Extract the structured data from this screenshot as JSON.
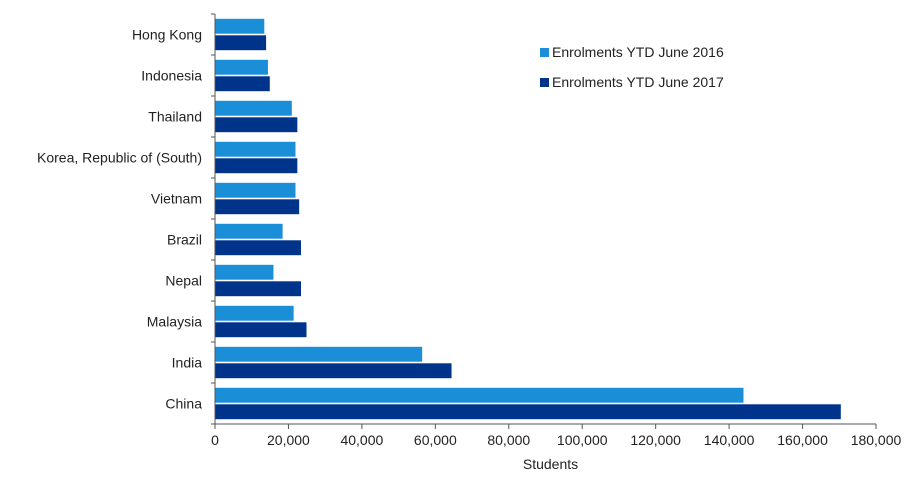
{
  "chart_data": {
    "type": "bar",
    "orientation": "horizontal",
    "categories": [
      "Hong Kong",
      "Indonesia",
      "Thailand",
      "Korea, Republic of (South)",
      "Vietnam",
      "Brazil",
      "Nepal",
      "Malaysia",
      "India",
      "China"
    ],
    "series": [
      {
        "name": "Enrolments YTD June 2016",
        "color": "#1a8fd8",
        "values": [
          13500,
          14500,
          21000,
          22000,
          22000,
          18500,
          16000,
          21500,
          56500,
          144000
        ]
      },
      {
        "name": "Enrolments YTD June 2017",
        "color": "#00348a",
        "values": [
          14000,
          15000,
          22500,
          22500,
          23000,
          23500,
          23500,
          25000,
          64500,
          170500
        ]
      }
    ],
    "xlabel": "Students",
    "ylabel": "",
    "xlim": [
      0,
      180000
    ],
    "xticks": [
      0,
      20000,
      40000,
      60000,
      80000,
      100000,
      120000,
      140000,
      160000,
      180000
    ],
    "xtick_labels": [
      "0",
      "20,000",
      "40,000",
      "60,000",
      "80,000",
      "100,000",
      "120,000",
      "140,000",
      "160,000",
      "180,000"
    ],
    "grid": false,
    "legend_position": "top-right"
  }
}
